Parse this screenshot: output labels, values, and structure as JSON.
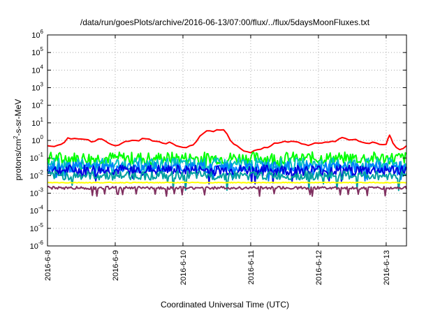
{
  "chart_data": {
    "type": "line",
    "title": "/data/run/goesPlots/archive/2016-06-13/07:00/flux/../flux/5daysMoonFluxes.txt",
    "xlabel": "Coordinated Universal Time (UTC)",
    "ylabel_parts": [
      "protons/cm",
      "2",
      "-s-sr-MeV"
    ],
    "y_scale": "log",
    "ylim": [
      1e-06,
      1000000.0
    ],
    "y_ticks": [
      {
        "base": "10",
        "exp": "-6"
      },
      {
        "base": "10",
        "exp": "-5"
      },
      {
        "base": "10",
        "exp": "-4"
      },
      {
        "base": "10",
        "exp": "-3"
      },
      {
        "base": "10",
        "exp": "-2"
      },
      {
        "base": "10",
        "exp": "-1"
      },
      {
        "base": "10",
        "exp": "0"
      },
      {
        "base": "10",
        "exp": "1"
      },
      {
        "base": "10",
        "exp": "2"
      },
      {
        "base": "10",
        "exp": "3"
      },
      {
        "base": "10",
        "exp": "4"
      },
      {
        "base": "10",
        "exp": "5"
      },
      {
        "base": "10",
        "exp": "6"
      }
    ],
    "x_ticks": [
      "2016-6-8",
      "2016-6-9",
      "2016-6-10",
      "2016-6-11",
      "2016-6-12",
      "2016-6-13"
    ],
    "xlim_days": [
      0,
      5.3
    ],
    "grid": true,
    "legend": "none",
    "series": [
      {
        "color": "#ff0000",
        "x": [
          0,
          0.1,
          0.2,
          0.3,
          0.4,
          0.5,
          0.6,
          0.7,
          0.8,
          0.9,
          1.0,
          1.1,
          1.2,
          1.3,
          1.4,
          1.5,
          1.6,
          1.7,
          1.8,
          1.9,
          2.0,
          2.1,
          2.2,
          2.3,
          2.4,
          2.5,
          2.6,
          2.7,
          2.8,
          2.9,
          3.0,
          3.1,
          3.2,
          3.3,
          3.4,
          3.5,
          3.6,
          3.7,
          3.8,
          3.9,
          4.0,
          4.1,
          4.2,
          4.3,
          4.4,
          4.5,
          4.6,
          4.7,
          4.8,
          4.9,
          5.0,
          5.05,
          5.1,
          5.2,
          5.3
        ],
        "y": [
          0.5,
          0.45,
          0.6,
          1.4,
          1.3,
          1.2,
          1.1,
          0.9,
          1.2,
          0.7,
          0.5,
          0.7,
          0.9,
          1.0,
          1.3,
          1.2,
          0.9,
          0.7,
          0.8,
          0.5,
          0.4,
          0.5,
          0.9,
          2.5,
          3.5,
          4.0,
          4.0,
          1.0,
          0.5,
          0.25,
          0.2,
          0.3,
          0.4,
          0.5,
          0.7,
          0.9,
          0.9,
          0.8,
          0.6,
          0.6,
          0.7,
          0.8,
          0.9,
          1.2,
          1.3,
          1.1,
          0.9,
          0.7,
          0.8,
          0.6,
          0.6,
          2.0,
          0.7,
          0.3,
          0.5
        ]
      },
      {
        "color": "#00ff00",
        "base": 0.1,
        "spread": 0.35,
        "dip": 0.35
      },
      {
        "color": "#00c0c0",
        "base": 0.045,
        "spread": 0.35,
        "dip": 0.5
      },
      {
        "color": "#0080ff",
        "base": 0.03,
        "spread": 0.3,
        "dip": 0.5
      },
      {
        "color": "#0000e0",
        "base": 0.02,
        "spread": 0.3,
        "dip": 0.5
      },
      {
        "color": "#00a0a0",
        "base": 0.01,
        "spread": 0.25,
        "dip": 0.6
      },
      {
        "color": "#ffff00",
        "base": 0.004,
        "spread": 0.02,
        "dip": 0.0
      },
      {
        "color": "#803060",
        "base": 0.002,
        "spread": 0.08,
        "dip": 0.4
      }
    ]
  }
}
